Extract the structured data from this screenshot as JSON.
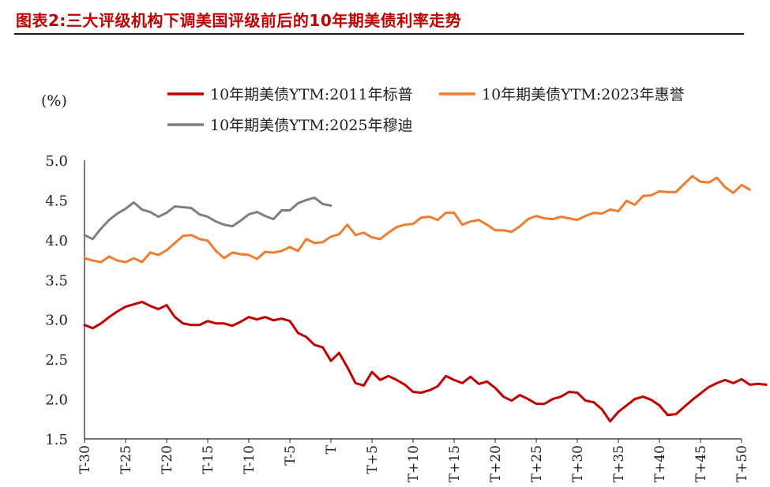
{
  "figure": {
    "title": "图表2:三大评级机构下调美国评级前后的10年期美债利率走势"
  },
  "chart_data": {
    "type": "line",
    "unit_label": "(%)",
    "ylim": [
      1.5,
      5.0
    ],
    "yticks": [
      "5.0",
      "4.5",
      "4.0",
      "3.5",
      "3.0",
      "2.5",
      "2.0",
      "1.5"
    ],
    "x_range": [
      -30,
      50
    ],
    "xticks": [
      "T-30",
      "T-25",
      "T-20",
      "T-15",
      "T-10",
      "T-5",
      "T",
      "T+5",
      "T+10",
      "T+15",
      "T+20",
      "T+25",
      "T+30",
      "T+35",
      "T+40",
      "T+45",
      "T+50"
    ],
    "xtick_offsets": [
      -30,
      -25,
      -20,
      -15,
      -10,
      -5,
      0,
      5,
      10,
      15,
      20,
      25,
      30,
      35,
      40,
      45,
      50
    ],
    "grid": false,
    "legend_position": "top",
    "series": [
      {
        "name": "10年期美债YTM:2011年标普",
        "color": "#c00000",
        "x_start": -30,
        "values": [
          2.93,
          2.89,
          2.95,
          3.03,
          3.1,
          3.16,
          3.19,
          3.22,
          3.17,
          3.13,
          3.18,
          3.03,
          2.95,
          2.93,
          2.93,
          2.98,
          2.95,
          2.95,
          2.92,
          2.97,
          3.03,
          3.0,
          3.03,
          2.99,
          3.01,
          2.98,
          2.83,
          2.78,
          2.68,
          2.65,
          2.48,
          2.58,
          2.4,
          2.2,
          2.17,
          2.34,
          2.24,
          2.29,
          2.24,
          2.18,
          2.09,
          2.08,
          2.11,
          2.16,
          2.29,
          2.24,
          2.2,
          2.28,
          2.19,
          2.22,
          2.14,
          2.03,
          1.98,
          2.05,
          2.0,
          1.94,
          1.94,
          2.0,
          2.03,
          2.09,
          2.08,
          1.98,
          1.96,
          1.87,
          1.72,
          1.84,
          1.92,
          2.0,
          2.03,
          1.99,
          1.92,
          1.8,
          1.81,
          1.9,
          1.99,
          2.07,
          2.15,
          2.2,
          2.24,
          2.2,
          2.25,
          2.18,
          2.19,
          2.18
        ]
      },
      {
        "name": "10年期美债YTM:2023年惠誉",
        "color": "#ed7d31",
        "x_start": -30,
        "values": [
          3.77,
          3.74,
          3.72,
          3.79,
          3.74,
          3.72,
          3.77,
          3.72,
          3.84,
          3.81,
          3.87,
          3.96,
          4.05,
          4.06,
          4.01,
          3.99,
          3.86,
          3.77,
          3.84,
          3.82,
          3.81,
          3.76,
          3.85,
          3.84,
          3.86,
          3.91,
          3.86,
          4.01,
          3.96,
          3.97,
          4.04,
          4.07,
          4.19,
          4.06,
          4.09,
          4.03,
          4.01,
          4.09,
          4.16,
          4.19,
          4.2,
          4.28,
          4.29,
          4.25,
          4.34,
          4.34,
          4.19,
          4.23,
          4.25,
          4.19,
          4.12,
          4.12,
          4.1,
          4.17,
          4.26,
          4.3,
          4.27,
          4.26,
          4.29,
          4.27,
          4.25,
          4.3,
          4.34,
          4.33,
          4.38,
          4.36,
          4.49,
          4.44,
          4.55,
          4.56,
          4.61,
          4.6,
          4.6,
          4.7,
          4.8,
          4.73,
          4.72,
          4.78,
          4.66,
          4.59,
          4.69,
          4.63
        ]
      },
      {
        "name": "10年期美债YTM:2025年穆迪",
        "color": "#7f7f7f",
        "x_start": -30,
        "values": [
          4.06,
          4.01,
          4.14,
          4.25,
          4.33,
          4.39,
          4.47,
          4.38,
          4.35,
          4.29,
          4.34,
          4.42,
          4.41,
          4.4,
          4.32,
          4.29,
          4.23,
          4.19,
          4.17,
          4.24,
          4.32,
          4.35,
          4.3,
          4.26,
          4.37,
          4.37,
          4.46,
          4.5,
          4.53,
          4.45,
          4.43
        ]
      }
    ]
  }
}
